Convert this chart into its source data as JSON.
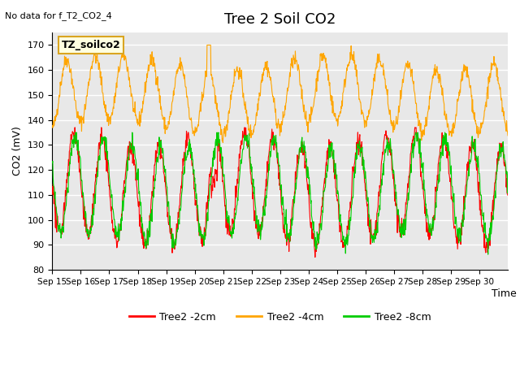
{
  "title": "Tree 2 Soil CO2",
  "subtitle": "No data for f_T2_CO2_4",
  "ylabel": "CO2 (mV)",
  "xlabel": "Time",
  "ylim": [
    80,
    175
  ],
  "yticks": [
    80,
    90,
    100,
    110,
    120,
    130,
    140,
    150,
    160,
    170
  ],
  "x_labels": [
    "Sep 15",
    "Sep 16",
    "Sep 17",
    "Sep 18",
    "Sep 19",
    "Sep 20",
    "Sep 21",
    "Sep 22",
    "Sep 23",
    "Sep 24",
    "Sep 25",
    "Sep 26",
    "Sep 27",
    "Sep 28",
    "Sep 29",
    "Sep 30"
  ],
  "colors": {
    "2cm": "#FF0000",
    "4cm": "#FFA500",
    "8cm": "#00CC00"
  },
  "legend_labels": [
    "Tree2 -2cm",
    "Tree2 -4cm",
    "Tree2 -8cm"
  ],
  "annotation_box": "TZ_soilco2",
  "background_color": "#FFFFFF",
  "plot_bg_color": "#E8E8E8",
  "grid_color": "#FFFFFF"
}
